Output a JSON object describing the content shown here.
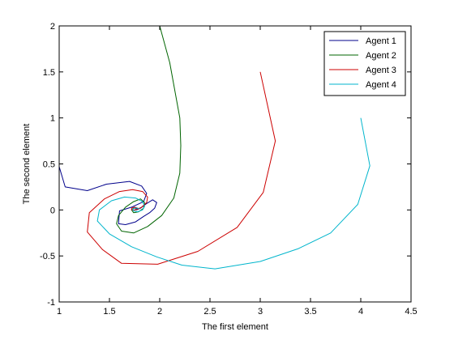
{
  "chart_data": {
    "type": "line",
    "title": "",
    "xlabel": "The first element",
    "ylabel": "The second element",
    "xlim": [
      1,
      4.5
    ],
    "ylim": [
      -1,
      2
    ],
    "xticks": [
      1,
      1.5,
      2,
      2.5,
      3,
      3.5,
      4,
      4.5
    ],
    "yticks": [
      -1,
      -0.5,
      0,
      0.5,
      1,
      1.5,
      2
    ],
    "xtick_labels": [
      "1",
      "1.5",
      "2",
      "2.5",
      "3",
      "3.5",
      "4",
      "4.5"
    ],
    "ytick_labels": [
      "-1",
      "-0.5",
      "0",
      "0.5",
      "1",
      "1.5",
      "2"
    ],
    "grid": false,
    "legend_position": "top-right",
    "series": [
      {
        "name": "Agent 1",
        "color": "#00008B",
        "x": [
          1.0,
          1.06,
          1.28,
          1.47,
          1.7,
          1.82,
          1.87,
          1.84,
          1.72,
          1.6,
          1.59,
          1.66,
          1.76,
          1.84,
          1.9,
          1.95,
          1.97,
          1.93,
          1.87,
          1.81,
          1.77,
          1.76,
          1.78,
          1.8
        ],
        "y": [
          0.47,
          0.25,
          0.21,
          0.28,
          0.31,
          0.26,
          0.18,
          0.09,
          0.03,
          -0.01,
          -0.15,
          -0.16,
          -0.13,
          -0.07,
          -0.03,
          0.02,
          0.08,
          0.11,
          0.07,
          0.02,
          0.0,
          0.01,
          0.02,
          0.01
        ]
      },
      {
        "name": "Agent 2",
        "color": "#006400",
        "x": [
          2.0,
          2.1,
          2.2,
          2.21,
          2.2,
          2.14,
          2.02,
          1.88,
          1.74,
          1.62,
          1.57,
          1.59,
          1.66,
          1.74,
          1.81,
          1.85,
          1.84,
          1.79,
          1.74,
          1.72,
          1.74,
          1.77,
          1.79
        ],
        "y": [
          2.0,
          1.6,
          1.0,
          0.7,
          0.4,
          0.13,
          -0.06,
          -0.18,
          -0.25,
          -0.23,
          -0.15,
          -0.06,
          0.03,
          0.09,
          0.12,
          0.08,
          0.02,
          -0.02,
          -0.03,
          0.0,
          0.02,
          0.02,
          0.01
        ]
      },
      {
        "name": "Agent 3",
        "color": "#CC0000",
        "x": [
          3.0,
          3.15,
          3.03,
          2.77,
          2.38,
          1.98,
          1.62,
          1.43,
          1.28,
          1.3,
          1.45,
          1.6,
          1.73,
          1.83,
          1.88,
          1.87,
          1.82,
          1.76,
          1.72,
          1.72,
          1.75,
          1.78,
          1.8
        ],
        "y": [
          1.5,
          0.75,
          0.19,
          -0.19,
          -0.45,
          -0.59,
          -0.58,
          -0.43,
          -0.24,
          -0.03,
          0.12,
          0.2,
          0.22,
          0.2,
          0.14,
          0.08,
          0.03,
          0.0,
          0.0,
          0.02,
          0.03,
          0.02,
          0.01
        ]
      },
      {
        "name": "Agent 4",
        "color": "#00B5CC",
        "x": [
          4.0,
          4.09,
          3.97,
          3.7,
          3.38,
          3.0,
          2.55,
          2.22,
          1.97,
          1.72,
          1.5,
          1.38,
          1.4,
          1.52,
          1.65,
          1.76,
          1.83,
          1.85,
          1.83,
          1.78,
          1.74,
          1.73,
          1.75,
          1.78,
          1.8
        ],
        "y": [
          1.0,
          0.48,
          0.06,
          -0.25,
          -0.42,
          -0.56,
          -0.64,
          -0.6,
          -0.51,
          -0.4,
          -0.26,
          -0.12,
          0.0,
          0.1,
          0.14,
          0.13,
          0.09,
          0.04,
          0.0,
          -0.02,
          -0.01,
          0.01,
          0.02,
          0.02,
          0.01
        ]
      }
    ]
  }
}
